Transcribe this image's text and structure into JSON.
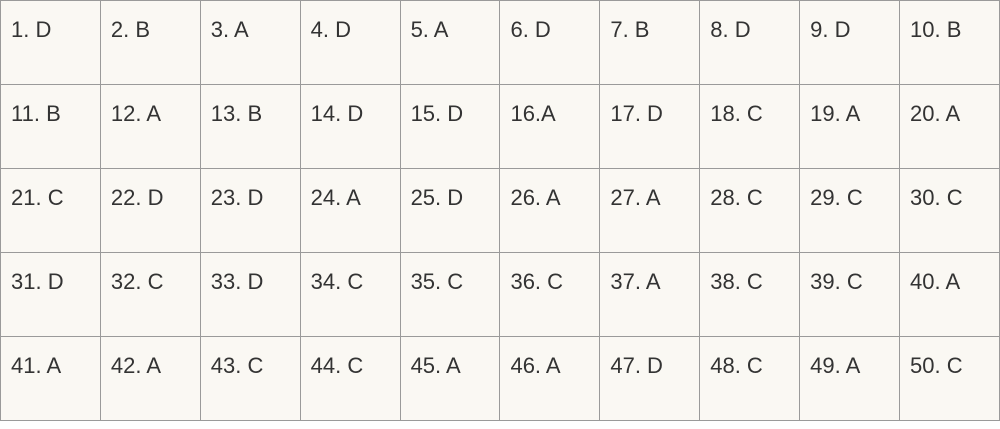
{
  "table": {
    "rows": [
      [
        "1. D",
        "2. B",
        "3. A",
        "4. D",
        "5. A",
        "6. D",
        "7. B",
        "8. D",
        "9. D",
        "10. B"
      ],
      [
        "11. B",
        "12. A",
        "13. B",
        "14. D",
        "15. D",
        "16.A",
        "17. D",
        "18. C",
        "19. A",
        "20. A"
      ],
      [
        "21. C",
        "22. D",
        "23. D",
        "24. A",
        "25. D",
        "26. A",
        "27. A",
        "28. C",
        "29. C",
        "30. C"
      ],
      [
        "31. D",
        "32. C",
        "33. D",
        "34. C",
        "35. C",
        "36. C",
        "37. A",
        "38. C",
        "39. C",
        "40. A"
      ],
      [
        "41. A",
        "42. A",
        "43. C",
        "44. C",
        "45. A",
        "46. A",
        "47. D",
        "48. C",
        "49. A",
        "50. C"
      ]
    ]
  }
}
